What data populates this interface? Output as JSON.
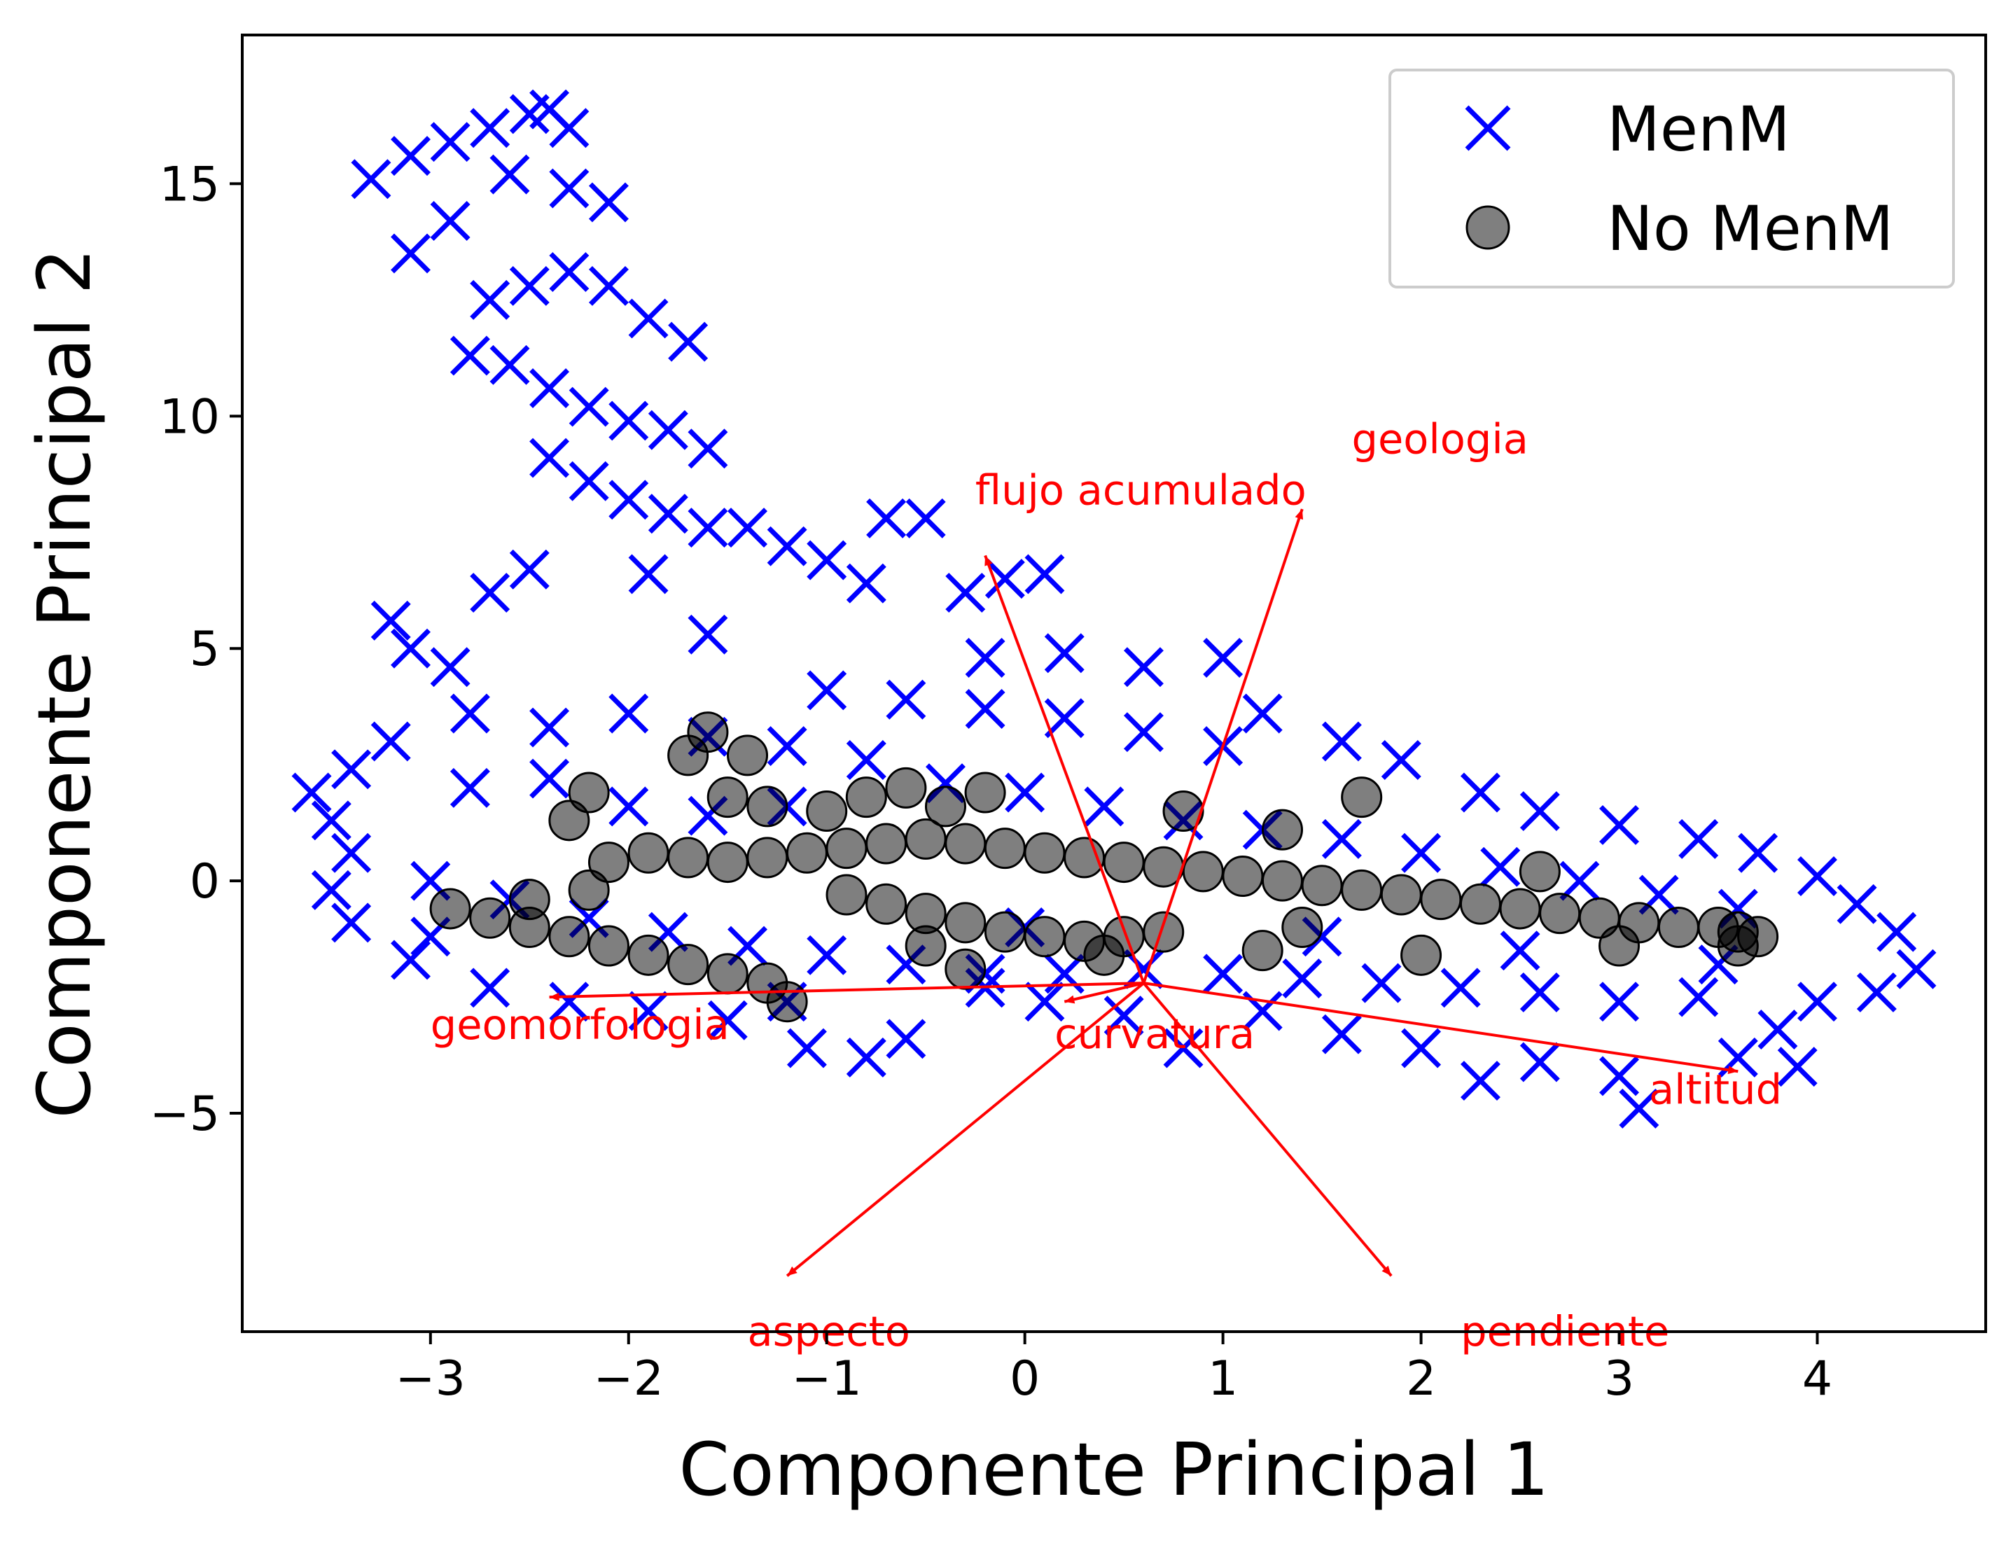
{
  "chart_data": {
    "type": "scatter",
    "title": "",
    "xlabel": "Componente Principal 1",
    "ylabel": "Componente Principal 2",
    "xlim": [
      -3.95,
      4.85
    ],
    "ylim": [
      -9.7,
      18.2
    ],
    "x_ticks": [
      -3,
      -2,
      -1,
      0,
      1,
      2,
      3,
      4
    ],
    "y_ticks": [
      -5,
      0,
      5,
      10,
      15
    ],
    "x_tick_labels": [
      "−3",
      "−2",
      "−1",
      "0",
      "1",
      "2",
      "3",
      "4"
    ],
    "y_tick_labels": [
      "−5",
      "0",
      "5",
      "10",
      "15"
    ],
    "grid": false,
    "legend": {
      "position": "top-right",
      "entries": [
        {
          "label": "MenM",
          "marker": "x",
          "color": "#0000ff"
        },
        {
          "label": "No MenM",
          "marker": "o",
          "color": "#000000"
        }
      ]
    },
    "series": [
      {
        "name": "MenM",
        "marker": "x",
        "color": "#0000ff",
        "points": [
          [
            -3.3,
            15.1
          ],
          [
            -3.1,
            15.6
          ],
          [
            -2.9,
            15.9
          ],
          [
            -2.7,
            16.2
          ],
          [
            -2.5,
            16.5
          ],
          [
            -2.4,
            16.6
          ],
          [
            -2.3,
            16.2
          ],
          [
            -2.6,
            15.2
          ],
          [
            -2.3,
            14.9
          ],
          [
            -2.1,
            14.6
          ],
          [
            -3.1,
            13.5
          ],
          [
            -2.9,
            14.2
          ],
          [
            -2.7,
            12.5
          ],
          [
            -2.5,
            12.8
          ],
          [
            -2.3,
            13.1
          ],
          [
            -2.1,
            12.8
          ],
          [
            -1.9,
            12.1
          ],
          [
            -1.7,
            11.6
          ],
          [
            -2.8,
            11.3
          ],
          [
            -2.6,
            11.1
          ],
          [
            -2.4,
            10.6
          ],
          [
            -2.2,
            10.2
          ],
          [
            -2.0,
            9.9
          ],
          [
            -1.8,
            9.7
          ],
          [
            -1.6,
            9.3
          ],
          [
            -2.4,
            9.1
          ],
          [
            -2.2,
            8.6
          ],
          [
            -2.0,
            8.2
          ],
          [
            -1.8,
            7.9
          ],
          [
            -1.6,
            7.6
          ],
          [
            -1.4,
            7.6
          ],
          [
            -1.2,
            7.2
          ],
          [
            -1.0,
            6.9
          ],
          [
            -0.8,
            6.4
          ],
          [
            -1.9,
            6.6
          ],
          [
            -2.5,
            6.7
          ],
          [
            -2.7,
            6.2
          ],
          [
            -3.2,
            5.6
          ],
          [
            -3.1,
            5.0
          ],
          [
            -2.9,
            4.6
          ],
          [
            -1.6,
            5.3
          ],
          [
            -0.7,
            7.8
          ],
          [
            -0.5,
            7.8
          ],
          [
            -0.3,
            6.2
          ],
          [
            -0.1,
            6.5
          ],
          [
            0.1,
            6.6
          ],
          [
            -0.2,
            4.8
          ],
          [
            0.2,
            4.9
          ],
          [
            0.6,
            4.6
          ],
          [
            1.0,
            4.8
          ],
          [
            1.2,
            3.6
          ],
          [
            1.6,
            3.0
          ],
          [
            1.9,
            2.6
          ],
          [
            2.3,
            1.9
          ],
          [
            2.6,
            1.5
          ],
          [
            3.0,
            1.2
          ],
          [
            3.4,
            0.9
          ],
          [
            3.7,
            0.6
          ],
          [
            4.0,
            0.1
          ],
          [
            4.2,
            -0.5
          ],
          [
            4.4,
            -1.1
          ],
          [
            4.5,
            -1.9
          ],
          [
            4.3,
            -2.4
          ],
          [
            4.0,
            -2.6
          ],
          [
            3.8,
            -3.2
          ],
          [
            3.6,
            -3.8
          ],
          [
            3.9,
            -4.0
          ],
          [
            3.1,
            -4.9
          ],
          [
            3.0,
            -4.2
          ],
          [
            2.6,
            -3.9
          ],
          [
            2.3,
            -4.3
          ],
          [
            2.0,
            -3.6
          ],
          [
            1.6,
            -3.3
          ],
          [
            1.2,
            -2.8
          ],
          [
            0.8,
            -3.6
          ],
          [
            0.5,
            -2.9
          ],
          [
            0.1,
            -2.6
          ],
          [
            -0.2,
            -2.3
          ],
          [
            -0.6,
            -3.4
          ],
          [
            -0.8,
            -3.8
          ],
          [
            -1.1,
            -3.6
          ],
          [
            -1.5,
            -3.0
          ],
          [
            -1.9,
            -2.8
          ],
          [
            -2.3,
            -2.6
          ],
          [
            -2.7,
            -2.3
          ],
          [
            -3.1,
            -1.7
          ],
          [
            -3.4,
            -0.9
          ],
          [
            -3.5,
            -0.2
          ],
          [
            -3.4,
            0.6
          ],
          [
            -3.5,
            1.3
          ],
          [
            -3.6,
            1.9
          ],
          [
            -3.4,
            2.4
          ],
          [
            -3.2,
            3.0
          ],
          [
            -2.8,
            3.6
          ],
          [
            -2.4,
            3.3
          ],
          [
            -2.0,
            3.6
          ],
          [
            -1.6,
            3.1
          ],
          [
            -1.2,
            2.9
          ],
          [
            -0.8,
            2.6
          ],
          [
            -0.4,
            2.1
          ],
          [
            0.0,
            1.9
          ],
          [
            0.4,
            1.6
          ],
          [
            0.8,
            1.3
          ],
          [
            1.2,
            1.1
          ],
          [
            1.6,
            0.9
          ],
          [
            2.0,
            0.6
          ],
          [
            2.4,
            0.3
          ],
          [
            2.8,
            0.0
          ],
          [
            3.2,
            -0.3
          ],
          [
            3.6,
            -0.6
          ],
          [
            -3.0,
            0.0
          ],
          [
            -2.6,
            -0.4
          ],
          [
            -2.2,
            -0.8
          ],
          [
            -1.8,
            -1.1
          ],
          [
            -1.4,
            -1.4
          ],
          [
            -1.0,
            -1.6
          ],
          [
            -0.6,
            -1.8
          ],
          [
            -0.2,
            -2.0
          ],
          [
            0.2,
            -2.0
          ],
          [
            0.6,
            -1.9
          ],
          [
            1.0,
            -2.0
          ],
          [
            1.4,
            -2.1
          ],
          [
            1.8,
            -2.2
          ],
          [
            2.2,
            -2.3
          ],
          [
            2.6,
            -2.4
          ],
          [
            3.0,
            -2.6
          ],
          [
            3.4,
            -2.5
          ],
          [
            -1.0,
            4.1
          ],
          [
            -0.6,
            3.9
          ],
          [
            -0.2,
            3.7
          ],
          [
            0.2,
            3.5
          ],
          [
            0.6,
            3.2
          ],
          [
            1.0,
            2.9
          ],
          [
            -2.0,
            1.6
          ],
          [
            -1.6,
            1.4
          ],
          [
            -1.2,
            1.6
          ],
          [
            -2.8,
            2.0
          ],
          [
            -2.4,
            2.2
          ],
          [
            0.0,
            -1.0
          ],
          [
            1.5,
            -1.2
          ],
          [
            2.5,
            -1.5
          ],
          [
            3.5,
            -1.8
          ],
          [
            -3.0,
            -1.2
          ],
          [
            -1.2,
            -2.6
          ]
        ]
      },
      {
        "name": "No MenM",
        "marker": "o",
        "color": "#000000",
        "points": [
          [
            -2.9,
            -0.6
          ],
          [
            -2.7,
            -0.8
          ],
          [
            -2.5,
            -1.0
          ],
          [
            -2.3,
            -1.2
          ],
          [
            -2.1,
            -1.4
          ],
          [
            -1.9,
            -1.6
          ],
          [
            -1.7,
            -1.8
          ],
          [
            -1.5,
            -2.0
          ],
          [
            -1.3,
            -2.2
          ],
          [
            -1.2,
            -2.6
          ],
          [
            -2.5,
            -0.4
          ],
          [
            -2.2,
            -0.2
          ],
          [
            -2.1,
            0.4
          ],
          [
            -1.9,
            0.6
          ],
          [
            -1.7,
            0.5
          ],
          [
            -1.5,
            0.4
          ],
          [
            -1.3,
            0.5
          ],
          [
            -1.1,
            0.6
          ],
          [
            -0.9,
            0.7
          ],
          [
            -0.7,
            0.8
          ],
          [
            -0.5,
            0.9
          ],
          [
            -0.3,
            0.8
          ],
          [
            -0.1,
            0.7
          ],
          [
            0.1,
            0.6
          ],
          [
            0.3,
            0.5
          ],
          [
            0.5,
            0.4
          ],
          [
            0.7,
            0.3
          ],
          [
            0.9,
            0.2
          ],
          [
            1.1,
            0.1
          ],
          [
            1.3,
            0.0
          ],
          [
            1.5,
            -0.1
          ],
          [
            1.7,
            -0.2
          ],
          [
            1.9,
            -0.3
          ],
          [
            2.1,
            -0.4
          ],
          [
            2.3,
            -0.5
          ],
          [
            2.5,
            -0.6
          ],
          [
            2.7,
            -0.7
          ],
          [
            2.9,
            -0.8
          ],
          [
            3.1,
            -0.9
          ],
          [
            3.3,
            -1.0
          ],
          [
            3.5,
            -1.0
          ],
          [
            3.6,
            -1.1
          ],
          [
            3.7,
            -1.2
          ],
          [
            3.6,
            -1.4
          ],
          [
            -0.9,
            -0.3
          ],
          [
            -0.7,
            -0.5
          ],
          [
            -0.5,
            -0.7
          ],
          [
            -0.3,
            -0.9
          ],
          [
            -0.1,
            -1.1
          ],
          [
            0.1,
            -1.2
          ],
          [
            0.3,
            -1.3
          ],
          [
            0.5,
            -1.2
          ],
          [
            0.7,
            -1.1
          ],
          [
            -1.0,
            1.5
          ],
          [
            -0.8,
            1.8
          ],
          [
            -0.6,
            2.0
          ],
          [
            -0.4,
            1.6
          ],
          [
            -1.7,
            2.7
          ],
          [
            -1.6,
            3.2
          ],
          [
            -1.4,
            2.7
          ],
          [
            -1.5,
            1.8
          ],
          [
            -1.3,
            1.6
          ],
          [
            -2.2,
            1.9
          ],
          [
            -2.3,
            1.3
          ],
          [
            1.7,
            1.8
          ],
          [
            1.3,
            1.1
          ],
          [
            0.8,
            1.5
          ],
          [
            -0.2,
            1.9
          ],
          [
            -0.5,
            -1.4
          ],
          [
            0.4,
            -1.6
          ],
          [
            1.4,
            -1.0
          ],
          [
            2.0,
            -1.6
          ],
          [
            1.2,
            -1.5
          ],
          [
            -0.3,
            -1.9
          ],
          [
            2.6,
            0.2
          ],
          [
            3.0,
            -1.4
          ]
        ]
      }
    ],
    "loading_vectors": [
      {
        "name": "flujo acumulado",
        "x": -0.2,
        "y": 7.0,
        "label_x": -0.25,
        "label_y": 8.1
      },
      {
        "name": "geologia",
        "x": 1.4,
        "y": 8.0,
        "label_x": 1.65,
        "label_y": 9.2
      },
      {
        "name": "geomorfologia",
        "x": -2.4,
        "y": -2.5,
        "label_x": -3.0,
        "label_y": -3.4
      },
      {
        "name": "curvatura",
        "x": 0.2,
        "y": -2.6,
        "label_x": 0.15,
        "label_y": -3.6
      },
      {
        "name": "altitud",
        "x": 3.6,
        "y": -4.1,
        "label_x": 3.15,
        "label_y": -4.8
      },
      {
        "name": "aspecto",
        "x": -1.2,
        "y": -8.5,
        "label_x": -1.4,
        "label_y": -10.0
      },
      {
        "name": "pendiente",
        "x": 1.85,
        "y": -8.5,
        "label_x": 2.2,
        "label_y": -10.0
      }
    ],
    "loading_color": "#ff0000",
    "origin": [
      0.6,
      -2.2
    ]
  }
}
